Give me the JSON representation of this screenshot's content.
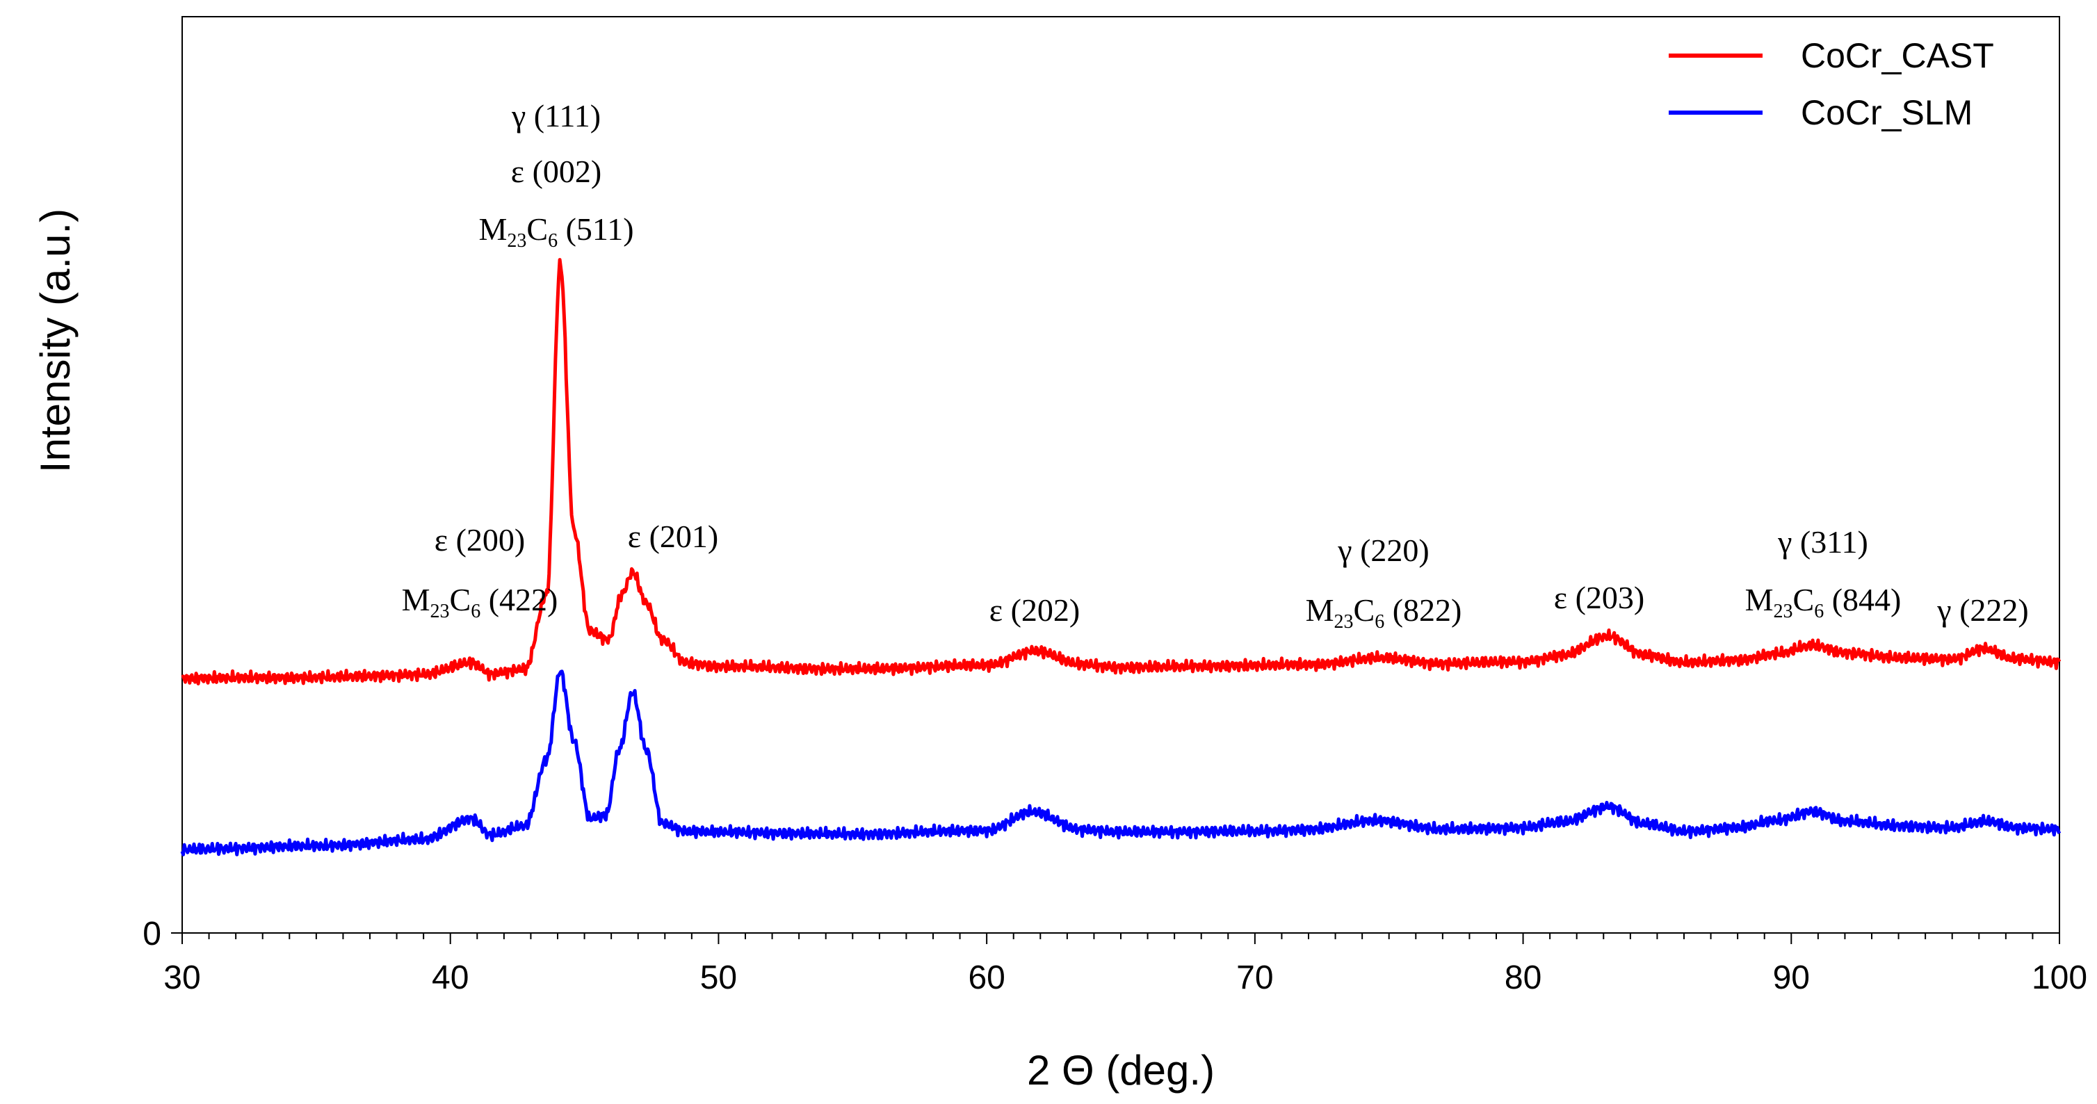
{
  "chart_data": {
    "type": "line",
    "title": "",
    "xlabel": "2 Θ (deg.)",
    "ylabel": "Intensity (a.u.)",
    "xlim": [
      30,
      100
    ],
    "ylim": [
      0,
      100
    ],
    "x_ticks": [
      30,
      40,
      50,
      60,
      70,
      80,
      90,
      100
    ],
    "y_ticks": [
      0
    ],
    "legend_position": "top-right",
    "series": [
      {
        "name": "CoCr_CAST",
        "color": "#ff0000",
        "x": [
          30,
          35,
          39,
          40.8,
          41.5,
          42.8,
          43.6,
          44.1,
          44.6,
          45.2,
          45.9,
          46.4,
          46.8,
          47.3,
          47.9,
          48.8,
          50,
          55,
          60,
          61.8,
          63.5,
          65,
          70,
          72,
          74.7,
          77,
          80,
          81.5,
          83.2,
          84.5,
          86,
          88,
          89.5,
          90.8,
          92,
          94,
          96,
          97.2,
          98.3,
          100
        ],
        "y": [
          27.8,
          27.9,
          28.2,
          29.5,
          28.3,
          28.8,
          37,
          73,
          44,
          33,
          32,
          37,
          39.4,
          36,
          32,
          29.5,
          29.1,
          28.8,
          29.2,
          30.8,
          29.3,
          29.0,
          29.2,
          29.3,
          30.0,
          29.4,
          29.6,
          30.3,
          32.4,
          30.4,
          29.5,
          29.8,
          30.5,
          31.4,
          30.6,
          30.0,
          29.9,
          31.0,
          29.9,
          29.6
        ]
      },
      {
        "name": "CoCr_SLM",
        "color": "#0000ff",
        "x": [
          30,
          35,
          39,
          40.8,
          41.5,
          42.8,
          43.6,
          44.1,
          44.6,
          45.2,
          45.8,
          46.3,
          46.8,
          47.3,
          47.9,
          48.8,
          50,
          55,
          60,
          61.7,
          63.5,
          65,
          70,
          72,
          74.6,
          77,
          80,
          81.5,
          83.2,
          84.5,
          86,
          88,
          89.5,
          90.8,
          92,
          94,
          96,
          97.3,
          98.4,
          100
        ],
        "y": [
          9.1,
          9.5,
          10.2,
          12.5,
          10.7,
          11.7,
          19,
          28.6,
          21,
          12.5,
          12.8,
          20,
          26.3,
          20,
          12,
          11.1,
          11.0,
          10.8,
          11.2,
          13.2,
          11.3,
          11.0,
          11.1,
          11.3,
          12.3,
          11.3,
          11.5,
          12.1,
          13.8,
          11.9,
          11.1,
          11.5,
          12.3,
          13.3,
          12.2,
          11.7,
          11.5,
          12.2,
          11.5,
          11.3
        ]
      }
    ],
    "annotations": [
      {
        "id": "a-44",
        "lines": [
          "γ (111)",
          "ε (002)",
          "M{23}C{6} (511)"
        ]
      },
      {
        "id": "a-41",
        "lines": [
          "ε (200)",
          "M{23}C{6} (422)"
        ]
      },
      {
        "id": "a-47",
        "lines": [
          "ε (201)"
        ]
      },
      {
        "id": "a-62",
        "lines": [
          "ε (202)"
        ]
      },
      {
        "id": "a-75",
        "lines": [
          "γ (220)",
          "M{23}C{6} (822)"
        ]
      },
      {
        "id": "a-83",
        "lines": [
          "ε (203)"
        ]
      },
      {
        "id": "a-91",
        "lines": [
          "γ (311)",
          "M{23}C{6} (844)"
        ]
      },
      {
        "id": "a-97",
        "lines": [
          "γ (222)"
        ]
      }
    ]
  }
}
